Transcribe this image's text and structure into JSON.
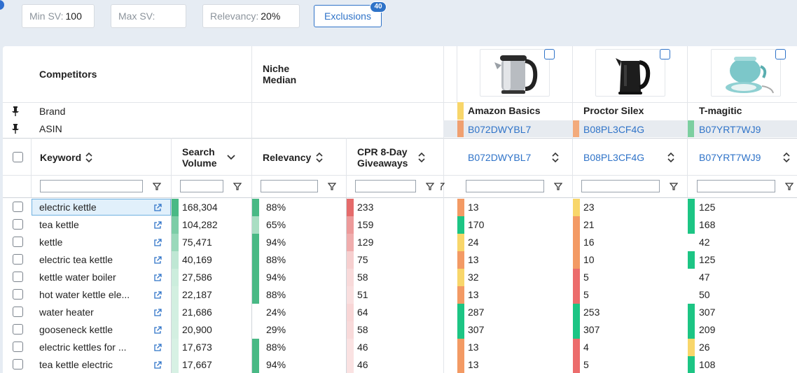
{
  "filters": {
    "min_sv_label": "Min SV:",
    "min_sv_value": "100",
    "max_sv_label": "Max SV:",
    "max_sv_value": "",
    "relevancy_label": "Relevancy:",
    "relevancy_value": "20%",
    "exclusions_label": "Exclusions",
    "exclusions_count": "40"
  },
  "header": {
    "competitors_label": "Competitors",
    "niche_line1": "Niche",
    "niche_line2": "Median",
    "brand_label": "Brand",
    "asin_label": "ASIN"
  },
  "products": [
    {
      "brand": "Amazon Basics",
      "asin": "B072DWYBL7",
      "color": "#f0a070"
    },
    {
      "brand": "Proctor Silex",
      "asin": "B08PL3CF4G",
      "color": "#f3ab7c"
    },
    {
      "brand": "T-magitic",
      "asin": "B07YRT7WJ9",
      "color": "#7ccfa0"
    }
  ],
  "columns": {
    "keyword": "Keyword",
    "sv_line1": "Search",
    "sv_line2": "Volume",
    "relevancy": "Relevancy",
    "cpr_line1": "CPR 8-Day",
    "cpr_line2": "Giveaways"
  },
  "colors": {
    "accent": "#2f73c8",
    "green": "#1cc584",
    "yellow": "#f8d66a",
    "orange": "#f39a64",
    "red": "#ec6c6c"
  },
  "rows": [
    {
      "keyword": "electric kettle",
      "sv": "168,304",
      "relevancy": "88%",
      "cpr": "233",
      "p1": "13",
      "p2": "23",
      "p3": "125"
    },
    {
      "keyword": "tea kettle",
      "sv": "104,282",
      "relevancy": "65%",
      "cpr": "159",
      "p1": "170",
      "p2": "21",
      "p3": "168"
    },
    {
      "keyword": "kettle",
      "sv": "75,471",
      "relevancy": "94%",
      "cpr": "129",
      "p1": "24",
      "p2": "16",
      "p3": "42"
    },
    {
      "keyword": "electric tea kettle",
      "sv": "40,169",
      "relevancy": "88%",
      "cpr": "75",
      "p1": "13",
      "p2": "10",
      "p3": "125"
    },
    {
      "keyword": "kettle water boiler",
      "sv": "27,586",
      "relevancy": "94%",
      "cpr": "58",
      "p1": "32",
      "p2": "5",
      "p3": "47"
    },
    {
      "keyword": "hot water kettle ele...",
      "sv": "22,187",
      "relevancy": "88%",
      "cpr": "51",
      "p1": "13",
      "p2": "5",
      "p3": "50"
    },
    {
      "keyword": "water heater",
      "sv": "21,686",
      "relevancy": "24%",
      "cpr": "64",
      "p1": "287",
      "p2": "253",
      "p3": "307"
    },
    {
      "keyword": "gooseneck kettle",
      "sv": "20,900",
      "relevancy": "29%",
      "cpr": "58",
      "p1": "307",
      "p2": "307",
      "p3": "209"
    },
    {
      "keyword": "electric kettles for ...",
      "sv": "17,673",
      "relevancy": "88%",
      "cpr": "46",
      "p1": "13",
      "p2": "4",
      "p3": "26"
    },
    {
      "keyword": "tea kettle electric",
      "sv": "17,667",
      "relevancy": "94%",
      "cpr": "46",
      "p1": "13",
      "p2": "5",
      "p3": "108"
    }
  ]
}
